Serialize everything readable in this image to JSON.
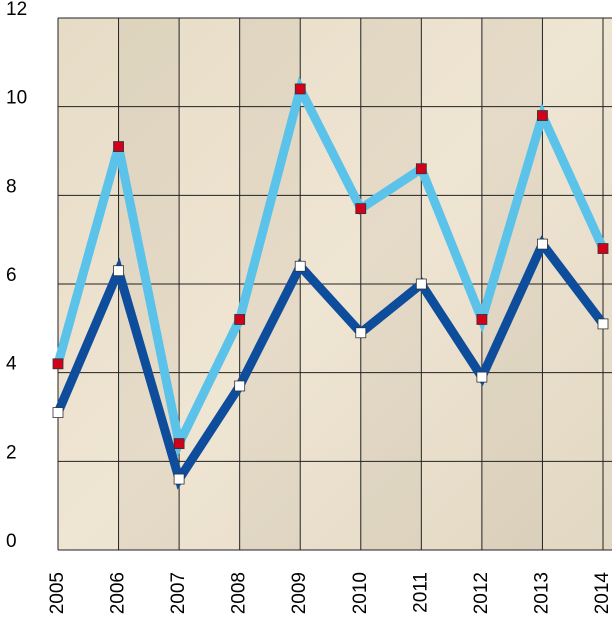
{
  "chart_data": {
    "type": "line",
    "categories": [
      "2005",
      "2006",
      "2007",
      "2008",
      "2009",
      "2010",
      "2011",
      "2012",
      "2013",
      "2014"
    ],
    "series": [
      {
        "color": "#5bc3ea",
        "marker_color": "#d0021b",
        "values": [
          4.2,
          9.1,
          2.4,
          5.2,
          10.4,
          7.7,
          8.6,
          5.2,
          9.8,
          6.8
        ]
      },
      {
        "color": "#0e4d9b",
        "marker_color": "#ffffff",
        "values": [
          3.1,
          6.3,
          1.6,
          3.7,
          6.4,
          4.9,
          6.0,
          3.9,
          6.9,
          5.1
        ]
      }
    ],
    "ylim": [
      0,
      12
    ],
    "yticks": [
      0,
      2,
      4,
      6,
      8,
      10,
      12
    ],
    "grid": true
  }
}
